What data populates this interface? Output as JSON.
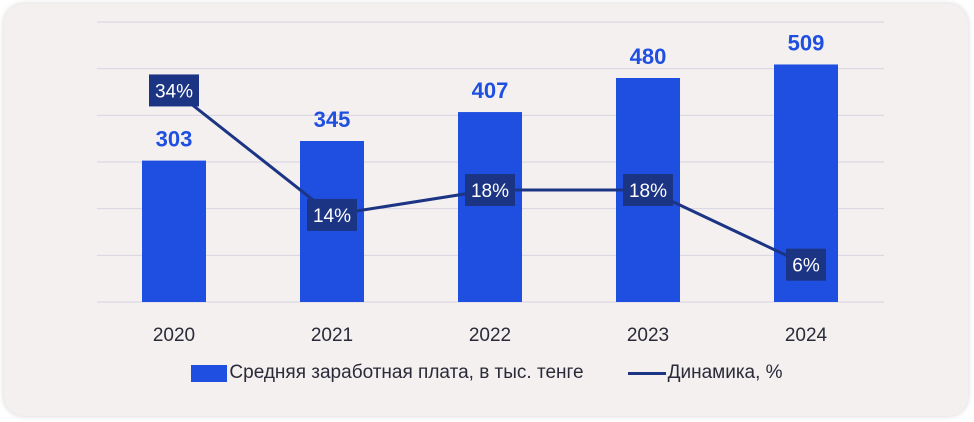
{
  "chart_data": {
    "type": "bar+line",
    "categories": [
      "2020",
      "2021",
      "2022",
      "2023",
      "2024"
    ],
    "series": [
      {
        "name": "Средняя заработная плата, в тыс. тенге",
        "kind": "bar",
        "values": [
          303,
          345,
          407,
          480,
          509
        ],
        "labels": [
          "303",
          "345",
          "407",
          "480",
          "509"
        ],
        "color": "#1f4fe0"
      },
      {
        "name": "Динамика, %",
        "kind": "line",
        "values": [
          34,
          14,
          18,
          18,
          6
        ],
        "labels": [
          "34%",
          "14%",
          "18%",
          "18%",
          "6%"
        ],
        "color": "#1c3484"
      }
    ],
    "bar_axis": {
      "ylim": [
        0,
        600
      ]
    },
    "line_axis": {
      "ylim": [
        0,
        45
      ]
    },
    "grid": true,
    "legend_position": "bottom"
  }
}
